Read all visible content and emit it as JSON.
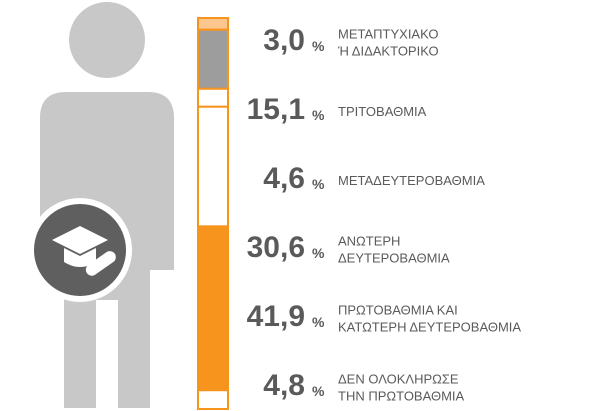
{
  "chart_data": {
    "type": "stacked-column",
    "unit": "%",
    "categories": [
      [
        "ΜΕΤΑΠΤΥΧΙΑΚΟ",
        "Ή ΔΙΔΑΚΤΟΡΙΚΟ"
      ],
      [
        "ΤΡΙΤΟΒΑΘΜΙΑ"
      ],
      [
        "ΜΕΤΑΔΕΥΤΕΡΟΒΑΘΜΙΑ"
      ],
      [
        "ΑΝΩΤΕΡΗ",
        "ΔΕΥΤΕΡΟΒΑΘΜΙΑ"
      ],
      [
        "ΠΡΩΤΟΒΑΘΜΙΑ ΚΑΙ",
        "ΚΑΤΩΤΕΡΗ ΔΕΥΤΕΡΟΒΑΘΜΙΑ"
      ],
      [
        "ΔΕΝ ΟΛΟΚΛΗΡΩΣΕ",
        "ΤΗΝ ΠΡΩΤΟΒΑΘΜΙΑ"
      ]
    ],
    "values": [
      3.0,
      15.1,
      4.6,
      30.6,
      41.9,
      4.8
    ],
    "value_labels": [
      "3,0",
      "15,1",
      "4,6",
      "30,6",
      "41,9",
      "4,8"
    ],
    "colors": [
      "#fbc78e",
      "#9d9d9d",
      "#ffffff",
      "#ffffff",
      "#f7941d",
      "#ffffff"
    ]
  }
}
